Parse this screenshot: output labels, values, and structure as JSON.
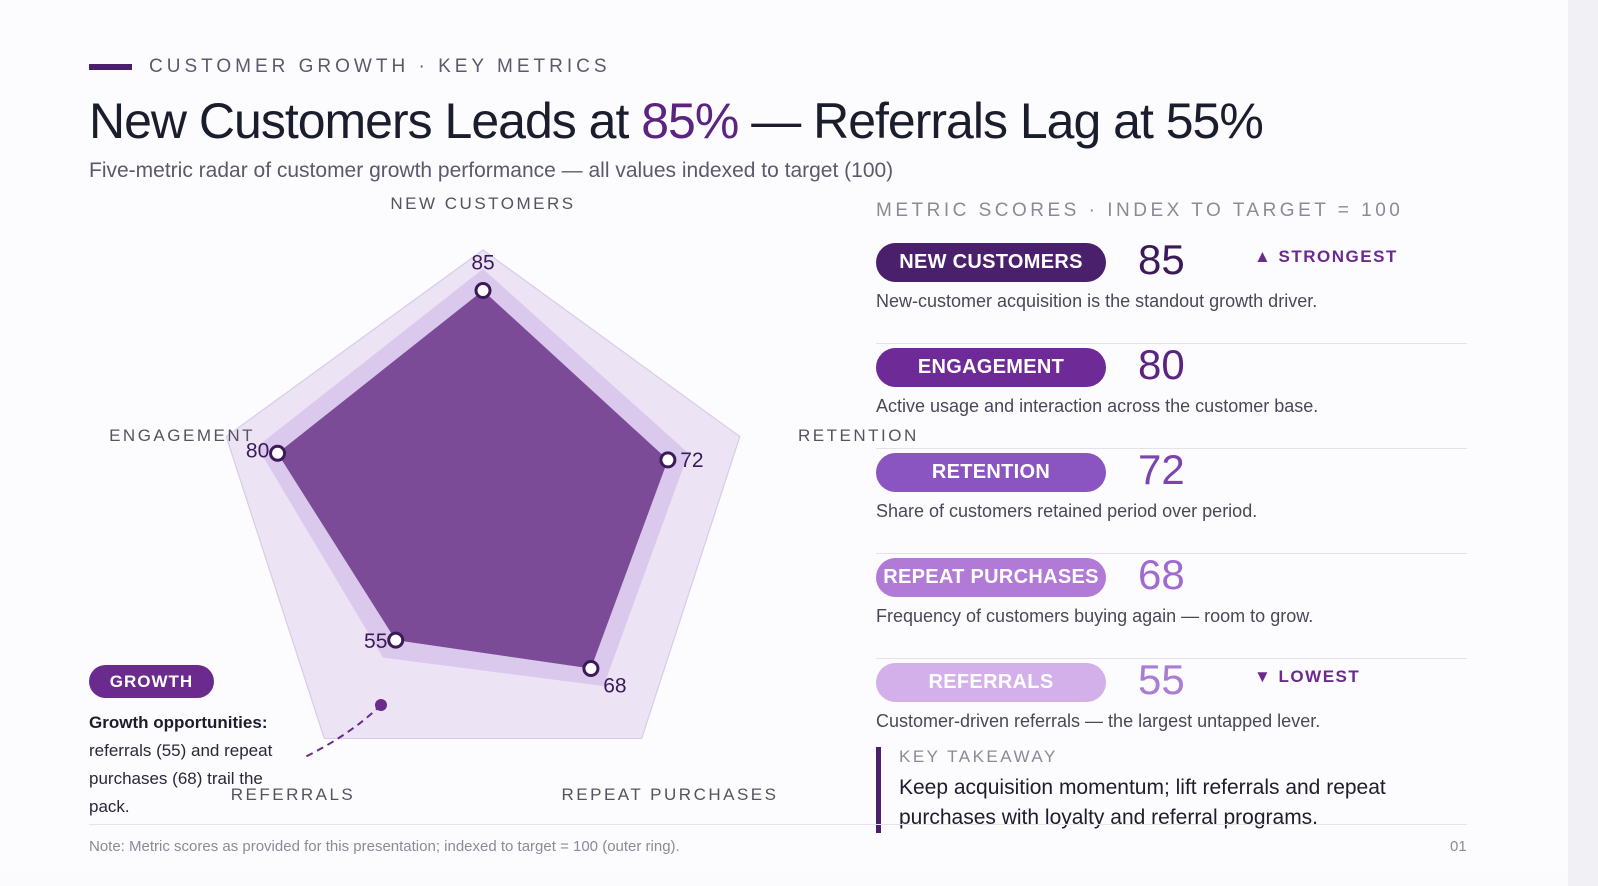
{
  "header": {
    "eyebrow": "CUSTOMER GROWTH · KEY METRICS",
    "title_before": "New Customers Leads at ",
    "title_accent": "85%",
    "title_after": " — Referrals Lag at 55%",
    "subtitle": "Five-metric radar of customer growth performance — all values indexed to target (100)"
  },
  "chart_data": {
    "type": "radar",
    "categories": [
      "NEW CUSTOMERS",
      "RETENTION",
      "REPEAT PURCHASES",
      "REFERRALS",
      "ENGAGEMENT"
    ],
    "values": [
      85,
      72,
      68,
      55,
      80
    ],
    "value_labels": [
      "85",
      "72",
      "68",
      "55",
      "80"
    ],
    "target": 100,
    "range": [
      0,
      100
    ],
    "colors": {
      "fill": "#7b4b97",
      "outer_ring": "#ece4f4",
      "band": "#dac9ec",
      "point_stroke": "#3b1a5a"
    }
  },
  "growth": {
    "pill": "GROWTH",
    "heading": "Growth opportunities:",
    "body": "referrals (55) and repeat purchases (68) trail the pack."
  },
  "scores": {
    "title": "METRIC SCORES · INDEX TO TARGET = 100",
    "items": [
      {
        "label": "NEW CUSTOMERS",
        "score": "85",
        "tag": "▲ STRONGEST",
        "desc": "New-customer acquisition is the standout growth driver.",
        "pill_color": "#4a1f6b",
        "score_color": "#3b1a5a"
      },
      {
        "label": "ENGAGEMENT",
        "score": "80",
        "tag": "",
        "desc": "Active usage and interaction across the customer base.",
        "pill_color": "#6e2a96",
        "score_color": "#5b2480"
      },
      {
        "label": "RETENTION",
        "score": "72",
        "tag": "",
        "desc": "Share of customers retained period over period.",
        "pill_color": "#8a55c0",
        "score_color": "#7a45ad"
      },
      {
        "label": "REPEAT PURCHASES",
        "score": "68",
        "tag": "",
        "desc": "Frequency of customers buying again — room to grow.",
        "pill_color": "#b07ad6",
        "score_color": "#a06ad0"
      },
      {
        "label": "REFERRALS",
        "score": "55",
        "tag": "▼ LOWEST",
        "desc": "Customer-driven referrals — the largest untapped lever.",
        "pill_color": "#d3b0ea",
        "score_color": "#a87dd4"
      }
    ]
  },
  "takeaway": {
    "label": "KEY TAKEAWAY",
    "text": "Keep acquisition momentum; lift referrals and repeat purchases with loyalty and referral programs."
  },
  "footer": {
    "note": "Note: Metric scores as provided for this presentation; indexed to target = 100 (outer ring).",
    "page": "01"
  }
}
